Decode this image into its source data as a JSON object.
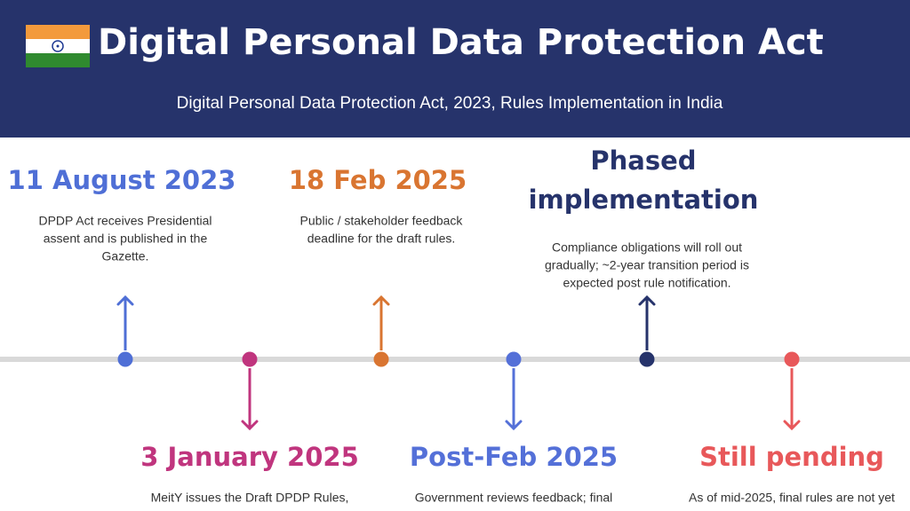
{
  "header": {
    "title": "Digital Personal Data Protection Act",
    "subtitle": "Digital Personal Data Protection Act, 2023, Rules Implementation in India"
  },
  "events": [
    {
      "heading": [
        "11 August 2023"
      ],
      "description": [
        "DPDP Act receives Presidential",
        "assent and is published in the",
        "Gazette."
      ],
      "color": "#4f6fd6"
    },
    {
      "heading": [
        "3 January 2025"
      ],
      "description": [
        "MeitY issues the Draft DPDP Rules,"
      ],
      "color": "#c0357e"
    },
    {
      "heading": [
        "18 Feb 2025"
      ],
      "description": [
        "Public / stakeholder feedback",
        "deadline for the draft rules."
      ],
      "color": "#d97531"
    },
    {
      "heading": [
        "Post-Feb 2025"
      ],
      "description": [
        "Government reviews feedback; final"
      ],
      "color": "#5470d8"
    },
    {
      "heading": [
        "Phased",
        "implementation"
      ],
      "description": [
        "Compliance obligations will roll out",
        "gradually; ~2-year transition period is",
        "expected post rule notification."
      ],
      "color": "#26336b"
    },
    {
      "heading": [
        "Still pending"
      ],
      "description": [
        "As of mid-2025, final rules are not yet"
      ],
      "color": "#e8585a"
    }
  ]
}
